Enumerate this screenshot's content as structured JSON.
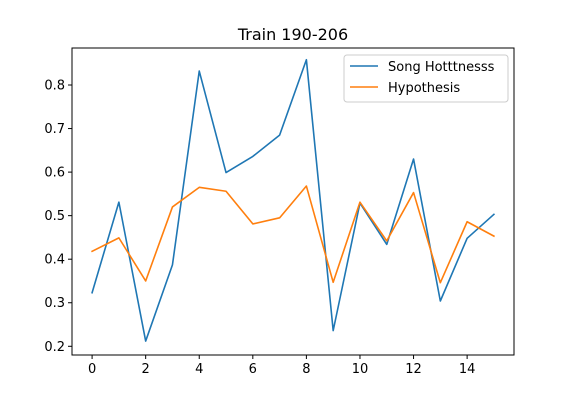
{
  "chart_data": {
    "type": "line",
    "title": "Train 190-206",
    "xlabel": "",
    "ylabel": "",
    "x": [
      0,
      1,
      2,
      3,
      4,
      5,
      6,
      7,
      8,
      9,
      10,
      11,
      12,
      13,
      14,
      15
    ],
    "xlim": [
      -0.75,
      15.75
    ],
    "ylim": [
      0.18,
      0.885
    ],
    "xticks": [
      0,
      2,
      4,
      6,
      8,
      10,
      12,
      14
    ],
    "xtick_labels": [
      "0",
      "2",
      "4",
      "6",
      "8",
      "10",
      "12",
      "14"
    ],
    "yticks": [
      0.2,
      0.3,
      0.4,
      0.5,
      0.6,
      0.7,
      0.8
    ],
    "ytick_labels": [
      "0.2",
      "0.3",
      "0.4",
      "0.5",
      "0.6",
      "0.7",
      "0.8"
    ],
    "grid": false,
    "legend_position": "top-right",
    "series": [
      {
        "name": "Song Hotttnesss",
        "color": "#1f77b4",
        "values": [
          0.323,
          0.531,
          0.212,
          0.387,
          0.832,
          0.599,
          0.636,
          0.685,
          0.858,
          0.236,
          0.529,
          0.434,
          0.63,
          0.304,
          0.448,
          0.503
        ]
      },
      {
        "name": "Hypothesis",
        "color": "#ff7f0e",
        "values": [
          0.418,
          0.449,
          0.35,
          0.52,
          0.565,
          0.556,
          0.481,
          0.495,
          0.568,
          0.347,
          0.531,
          0.442,
          0.553,
          0.346,
          0.486,
          0.453
        ]
      }
    ]
  }
}
